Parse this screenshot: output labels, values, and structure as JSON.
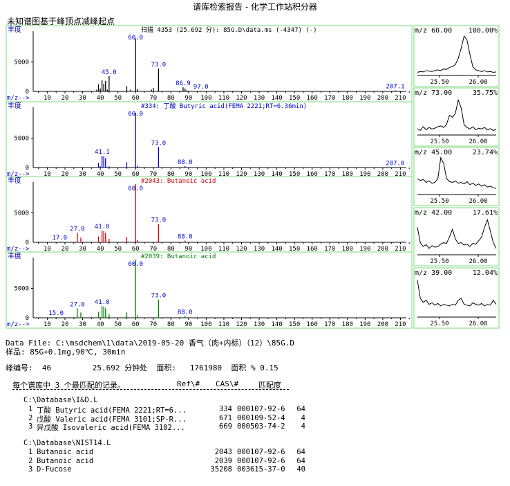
{
  "title": "谱库检索报告 - 化学工作站积分器",
  "subtitle": "未知谱图基于峰顶点减峰起点",
  "spectra": [
    {
      "header": "扫描 4353 (25.692 分): 85G.D\\data.ms (-4347) (-)",
      "header_color": "#000000",
      "bar_color": "#000000",
      "label_color": "#0000cc",
      "peaks": [
        [
          38,
          300
        ],
        [
          39,
          1200
        ],
        [
          40,
          500
        ],
        [
          41,
          1900
        ],
        [
          42,
          1300
        ],
        [
          43,
          1800
        ],
        [
          44,
          300
        ],
        [
          45,
          2600
        ],
        [
          55,
          900
        ],
        [
          57,
          300
        ],
        [
          60,
          9000
        ],
        [
          61,
          400
        ],
        [
          69,
          300
        ],
        [
          70,
          600
        ],
        [
          73,
          3900
        ],
        [
          86.9,
          700
        ],
        [
          88,
          500
        ],
        [
          89,
          200
        ],
        [
          97,
          100
        ],
        [
          207.1,
          150
        ]
      ],
      "labels": [
        {
          "x": 45,
          "text": "45.0"
        },
        {
          "x": 60,
          "text": "60.0"
        },
        {
          "x": 73,
          "text": "73.0"
        },
        {
          "x": 86.9,
          "text": "86.9"
        },
        {
          "x": 97,
          "text": "97.0"
        },
        {
          "x": 207.1,
          "text": "207.1"
        }
      ]
    },
    {
      "header": "#334: 丁酸 Butyric acid(FEMA 2221;RT=6.36min)",
      "header_color": "#0000cc",
      "bar_color": "#0000cc",
      "label_color": "#0000cc",
      "peaks": [
        [
          39,
          800
        ],
        [
          40,
          200
        ],
        [
          41,
          2000
        ],
        [
          42,
          1900
        ],
        [
          43,
          1600
        ],
        [
          45,
          200
        ],
        [
          55,
          900
        ],
        [
          60,
          9300
        ],
        [
          61,
          300
        ],
        [
          73,
          3500
        ],
        [
          88,
          250
        ],
        [
          207,
          50
        ]
      ],
      "labels": [
        {
          "x": 41.1,
          "text": "41.1"
        },
        {
          "x": 60,
          "text": "60.0"
        },
        {
          "x": 73,
          "text": "73.0"
        },
        {
          "x": 88,
          "text": "88.0"
        },
        {
          "x": 207,
          "text": "207.0"
        }
      ]
    },
    {
      "header": "#2043: Butanoic acid",
      "header_color": "#cc0000",
      "bar_color": "#cc0000",
      "label_color": "#0000cc",
      "peaks": [
        [
          17,
          100
        ],
        [
          27,
          1600
        ],
        [
          29,
          800
        ],
        [
          39,
          1000
        ],
        [
          41,
          2000
        ],
        [
          42,
          1900
        ],
        [
          43,
          1600
        ],
        [
          45,
          600
        ],
        [
          55,
          900
        ],
        [
          60,
          9900
        ],
        [
          61,
          400
        ],
        [
          73,
          3100
        ],
        [
          88,
          300
        ]
      ],
      "labels": [
        {
          "x": 17,
          "text": "17.0"
        },
        {
          "x": 27,
          "text": "27.0"
        },
        {
          "x": 41,
          "text": "41.0"
        },
        {
          "x": 60,
          "text": "60.0"
        },
        {
          "x": 73,
          "text": "73.0"
        },
        {
          "x": 88,
          "text": "88.0"
        }
      ]
    },
    {
      "header": "#2039: Butanoic acid",
      "header_color": "#008000",
      "bar_color": "#008000",
      "label_color": "#0000cc",
      "peaks": [
        [
          15,
          100
        ],
        [
          27,
          1600
        ],
        [
          29,
          900
        ],
        [
          39,
          1000
        ],
        [
          41,
          2000
        ],
        [
          42,
          1900
        ],
        [
          43,
          1600
        ],
        [
          45,
          600
        ],
        [
          55,
          900
        ],
        [
          60,
          9900
        ],
        [
          61,
          400
        ],
        [
          73,
          3100
        ],
        [
          88,
          300
        ]
      ],
      "labels": [
        {
          "x": 15,
          "text": "15.0"
        },
        {
          "x": 27,
          "text": "27.0"
        },
        {
          "x": 41,
          "text": "41.0"
        },
        {
          "x": 60,
          "text": "60.0"
        },
        {
          "x": 73,
          "text": "73.0"
        },
        {
          "x": 88,
          "text": "88.0"
        }
      ]
    }
  ],
  "axis": {
    "abundance_label": "丰度",
    "mz_label": "m/z-->",
    "ytick": "5000",
    "yzero": "0",
    "xticks": [
      "10",
      "20",
      "30",
      "40",
      "50",
      "60",
      "70",
      "80",
      "90",
      "100",
      "110",
      "120",
      "130",
      "140",
      "150",
      "160",
      "170",
      "180",
      "190",
      "200",
      "210"
    ]
  },
  "chromatograms": [
    {
      "mz": "m/z  60.00",
      "pct": "100.00%",
      "t1": "25.50",
      "t2": "26.00"
    },
    {
      "mz": "m/z  73.00",
      "pct": "35.75%",
      "t1": "25.50",
      "t2": "26.00"
    },
    {
      "mz": "m/z  45.00",
      "pct": "23.74%",
      "t1": "25.50",
      "t2": "26.00"
    },
    {
      "mz": "m/z  42.00",
      "pct": "17.61%",
      "t1": "25.50",
      "t2": "26.00"
    },
    {
      "mz": "m/z  39.00",
      "pct": "12.04%",
      "t1": "25.50",
      "t2": "26.00"
    }
  ],
  "info": {
    "data_file": "Data File: C:\\msdchem\\1\\data\\2019-05-20 香气（肉+内标）（12）\\85G.D",
    "sample": "样品: 85G+0.1mg,90℃, 30min",
    "peak_line": "峰编号:  46         25.692 分钟处  面积:   1761980  面积 % 0.15",
    "count_line": "每个谱库中 3 个最匹配的记录。",
    "header_ref": "Ref\\#",
    "header_cas": "CAS\\#",
    "header_match": "匹配度"
  },
  "libraries": [
    {
      "path": "C:\\Database\\I&D.L",
      "rows": [
        {
          "n": "1",
          "name": "丁酸 Butyric acid(FEMA 2221;RT=6...",
          "ref": "334",
          "cas": "000107-92-6",
          "q": "64"
        },
        {
          "n": "2",
          "name": "戊酸 Valeric acid(FEMA 3101;SP-R...",
          "ref": "671",
          "cas": "000109-52-4",
          "q": "4"
        },
        {
          "n": "3",
          "name": "异戊酸 Isovaleric acid(FEMA 3102...",
          "ref": "669",
          "cas": "000503-74-2",
          "q": "4"
        }
      ]
    },
    {
      "path": "C:\\Database\\NIST14.L",
      "rows": [
        {
          "n": "1",
          "name": "Butanoic acid",
          "ref": "2043",
          "cas": "000107-92-6",
          "q": "64"
        },
        {
          "n": "2",
          "name": "Butanoic acid",
          "ref": "2039",
          "cas": "000107-92-6",
          "q": "64"
        },
        {
          "n": "3",
          "name": "D-Fucose",
          "ref": "35208",
          "cas": "003615-37-0",
          "q": "40"
        }
      ]
    }
  ]
}
